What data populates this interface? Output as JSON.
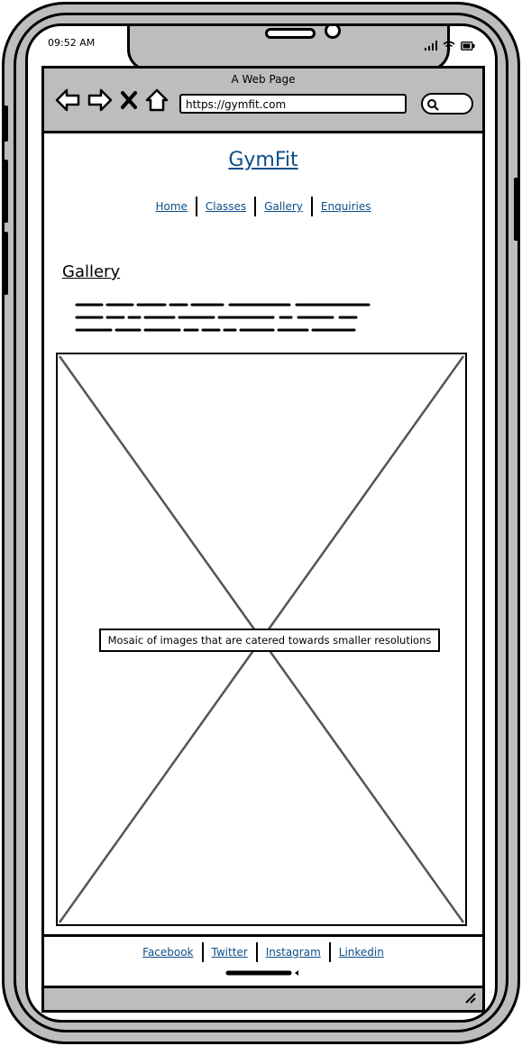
{
  "status_bar": {
    "time": "09:52 AM",
    "icons": [
      "signal-icon",
      "wifi-icon",
      "battery-icon"
    ]
  },
  "browser": {
    "title": "A Web Page",
    "url": "https://gymfit.com",
    "nav_icons": [
      "back-arrow-icon",
      "forward-arrow-icon",
      "stop-icon",
      "home-icon"
    ],
    "search_icon": "search-icon"
  },
  "site": {
    "title": "GymFit",
    "nav": [
      "Home",
      "Classes",
      "Gallery",
      "Enquiries"
    ]
  },
  "gallery": {
    "heading": "Gallery",
    "placeholder_label": "Mosaic of images that are catered towards smaller resolutions"
  },
  "footer": {
    "links": [
      "Facebook",
      "Twitter",
      "Instagram",
      "Linkedin"
    ]
  },
  "colors": {
    "link": "#0b4f8a",
    "chrome": "#bdbdbd"
  }
}
